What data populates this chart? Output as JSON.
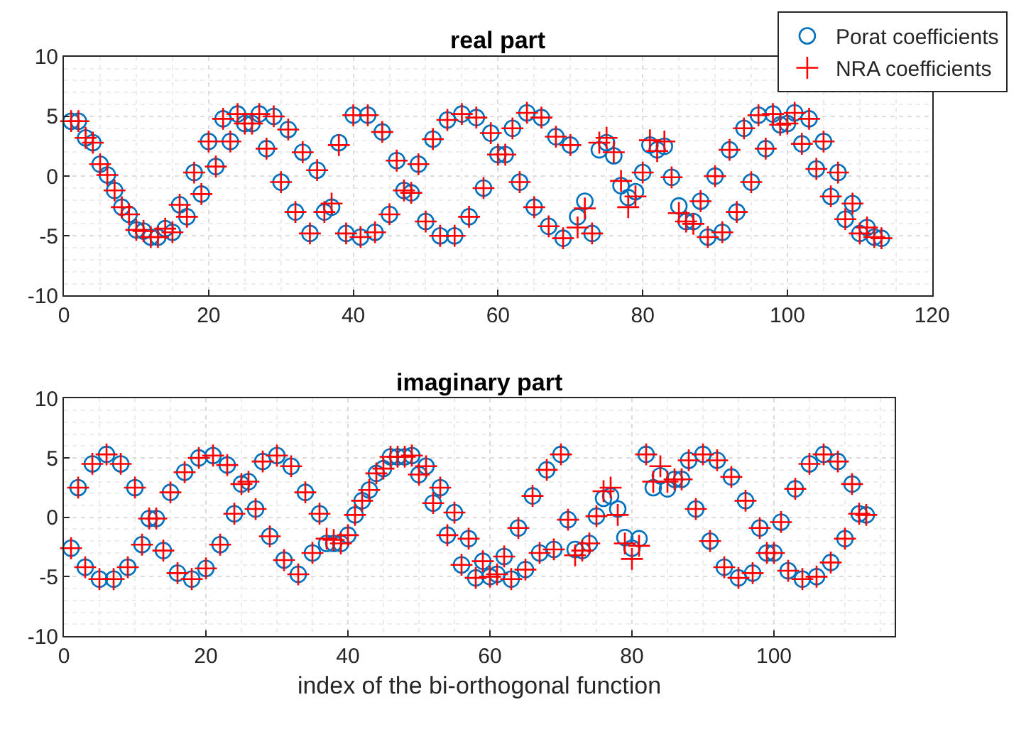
{
  "chart_data": [
    {
      "type": "scatter",
      "title": "real part",
      "xlim": [
        0,
        120
      ],
      "ylim": [
        -10,
        10
      ],
      "xticks": [
        0,
        20,
        40,
        60,
        80,
        100,
        120
      ],
      "yticks": [
        -10,
        -5,
        0,
        5,
        10
      ],
      "grid": true,
      "legend": "top right",
      "x": [
        1,
        2,
        3,
        4,
        5,
        6,
        7,
        8,
        9,
        10,
        11,
        12,
        13,
        14,
        15,
        16,
        17,
        18,
        19,
        20,
        21,
        22,
        23,
        24,
        25,
        26,
        27,
        28,
        29,
        30,
        31,
        32,
        33,
        34,
        35,
        36,
        37,
        38,
        39,
        40,
        41,
        42,
        43,
        44,
        45,
        46,
        47,
        48,
        49,
        50,
        51,
        52,
        53,
        54,
        55,
        56,
        57,
        58,
        59,
        60,
        61,
        62,
        63,
        64,
        65,
        66,
        67,
        68,
        69,
        70,
        71,
        72,
        73,
        74,
        75,
        76,
        77,
        78,
        79,
        80,
        81,
        82,
        83,
        84,
        85,
        86,
        87,
        88,
        89,
        90,
        91,
        92,
        93,
        94,
        95,
        96,
        97,
        98,
        99,
        100,
        101,
        102,
        103,
        104,
        105,
        106,
        107,
        108,
        109,
        110,
        111,
        112,
        113
      ],
      "series": [
        {
          "name": "Porat coefficients",
          "color": "#0072bd",
          "marker": "circle",
          "values": [
            4.6,
            4.6,
            3.2,
            2.8,
            1.0,
            0.1,
            -1.2,
            -2.6,
            -3.2,
            -4.5,
            -4.6,
            -5.1,
            -5.1,
            -4.4,
            -4.7,
            -2.4,
            -3.4,
            0.3,
            -1.5,
            2.9,
            0.8,
            4.8,
            2.9,
            5.2,
            4.4,
            4.4,
            5.2,
            2.3,
            5.0,
            -0.5,
            3.9,
            -3.0,
            2.0,
            -4.8,
            0.5,
            -3.0,
            -2.6,
            2.8,
            -4.8,
            5.1,
            -5.1,
            5.1,
            -4.7,
            3.7,
            -3.2,
            1.3,
            -1.2,
            -1.4,
            1.0,
            -3.8,
            3.1,
            -5.0,
            4.7,
            -5.0,
            5.2,
            -3.4,
            4.9,
            -1.0,
            3.6,
            1.8,
            1.8,
            4.0,
            -0.5,
            5.3,
            -2.6,
            4.9,
            -4.2,
            3.3,
            -5.2,
            2.6,
            -3.4,
            -2.1,
            -4.8,
            2.2,
            2.8,
            1.7,
            -0.8,
            -1.8,
            -1.3,
            0.3,
            2.6,
            2.2,
            2.5,
            -0.1,
            -2.5,
            -3.8,
            -3.8,
            -2.1,
            -5.1,
            0.0,
            -4.7,
            2.2,
            -3.0,
            4.0,
            -0.5,
            5.1,
            2.3,
            5.2,
            4.3,
            4.4,
            5.3,
            2.7,
            4.8,
            0.6,
            2.9,
            -1.7,
            0.3,
            -3.6,
            -2.3,
            -4.8,
            -4.3,
            -5.1,
            -5.2
          ]
        },
        {
          "name": "NRA coefficients",
          "color": "#ff0000",
          "marker": "cross",
          "values": [
            4.6,
            4.6,
            3.2,
            2.8,
            1.0,
            0.1,
            -1.2,
            -2.6,
            -3.2,
            -4.5,
            -4.6,
            -5.1,
            -5.1,
            -4.4,
            -4.7,
            -2.4,
            -3.4,
            0.3,
            -1.5,
            2.9,
            0.8,
            4.8,
            2.9,
            5.2,
            4.4,
            4.4,
            5.2,
            2.3,
            5.0,
            -0.5,
            3.9,
            -3.0,
            2.0,
            -4.8,
            0.5,
            -3.0,
            -2.3,
            2.6,
            -4.8,
            5.1,
            -5.1,
            5.1,
            -4.7,
            3.7,
            -3.2,
            1.3,
            -1.2,
            -1.4,
            1.0,
            -3.8,
            3.1,
            -5.0,
            4.7,
            -5.0,
            5.2,
            -3.4,
            4.9,
            -1.0,
            3.6,
            1.8,
            1.8,
            4.0,
            -0.5,
            5.3,
            -2.6,
            4.9,
            -4.2,
            3.3,
            -5.2,
            2.6,
            -4.3,
            -2.7,
            -4.8,
            2.8,
            3.2,
            2.0,
            -0.4,
            -2.6,
            -1.7,
            0.3,
            3.0,
            2.1,
            2.9,
            -0.1,
            -3.1,
            -3.8,
            -4.0,
            -2.1,
            -5.1,
            0.0,
            -4.7,
            2.2,
            -3.0,
            4.0,
            -0.5,
            5.1,
            2.3,
            5.2,
            4.3,
            4.4,
            5.3,
            2.7,
            4.8,
            0.6,
            2.9,
            -1.7,
            0.3,
            -3.6,
            -2.3,
            -4.8,
            -4.3,
            -5.1,
            -5.2
          ]
        }
      ]
    },
    {
      "type": "scatter",
      "title": "imaginary part",
      "xlabel": "index of the bi-orthogonal function",
      "xlim": [
        0,
        117
      ],
      "ylim": [
        -10,
        10
      ],
      "xticks": [
        0,
        20,
        40,
        60,
        80,
        100
      ],
      "yticks": [
        -10,
        -5,
        0,
        5,
        10
      ],
      "grid": true,
      "x": [
        1,
        2,
        3,
        4,
        5,
        6,
        7,
        8,
        9,
        10,
        11,
        12,
        13,
        14,
        15,
        16,
        17,
        18,
        19,
        20,
        21,
        22,
        23,
        24,
        25,
        26,
        27,
        28,
        29,
        30,
        31,
        32,
        33,
        34,
        35,
        36,
        37,
        38,
        39,
        40,
        41,
        42,
        43,
        44,
        45,
        46,
        47,
        48,
        49,
        50,
        51,
        52,
        53,
        54,
        55,
        56,
        57,
        58,
        59,
        60,
        61,
        62,
        63,
        64,
        65,
        66,
        67,
        68,
        69,
        70,
        71,
        72,
        73,
        74,
        75,
        76,
        77,
        78,
        79,
        80,
        81,
        82,
        83,
        84,
        85,
        86,
        87,
        88,
        89,
        90,
        91,
        92,
        93,
        94,
        95,
        96,
        97,
        98,
        99,
        100,
        101,
        102,
        103,
        104,
        105,
        106,
        107,
        108,
        109,
        110,
        111,
        112,
        113
      ],
      "series": [
        {
          "color": "#0072bd",
          "marker": "circle",
          "values": [
            -2.6,
            2.5,
            -4.2,
            4.5,
            -5.2,
            5.3,
            -5.2,
            4.5,
            -4.2,
            2.5,
            -2.3,
            -0.1,
            -0.1,
            -2.8,
            2.1,
            -4.7,
            3.8,
            -5.2,
            5.0,
            -4.3,
            5.2,
            -2.3,
            4.4,
            0.3,
            2.8,
            3.0,
            0.7,
            4.7,
            -1.6,
            5.2,
            -3.6,
            4.3,
            -4.8,
            2.1,
            -3.0,
            0.3,
            -2.2,
            -2.2,
            -2.2,
            -1.5,
            0.2,
            1.4,
            2.3,
            3.7,
            4.1,
            5.1,
            5.1,
            5.1,
            5.2,
            3.6,
            4.3,
            1.2,
            2.5,
            -1.5,
            0.4,
            -4.0,
            -1.8,
            -5.1,
            -3.7,
            -5.0,
            -4.8,
            -3.3,
            -5.2,
            -0.9,
            -4.4,
            1.8,
            -3.0,
            4.0,
            -2.7,
            5.3,
            -0.2,
            -2.7,
            -2.8,
            -2.2,
            0.1,
            1.6,
            1.8,
            0.7,
            -1.7,
            -2.6,
            -1.8,
            5.3,
            2.5,
            3.5,
            2.4,
            3.2,
            3.2,
            4.8,
            0.7,
            5.3,
            -2.0,
            4.8,
            -4.2,
            3.4,
            -5.1,
            1.4,
            -4.7,
            -0.9,
            -3.0,
            -3.0,
            -0.4,
            -4.5,
            2.4,
            -5.2,
            4.5,
            -5.0,
            5.3,
            -3.8,
            4.7,
            -1.8,
            2.8,
            0.3,
            0.2
          ]
        },
        {
          "color": "#ff0000",
          "marker": "cross",
          "values": [
            -2.6,
            2.5,
            -4.2,
            4.5,
            -5.2,
            5.3,
            -5.2,
            4.5,
            -4.2,
            2.5,
            -2.3,
            -0.1,
            -0.1,
            -2.8,
            2.1,
            -4.7,
            3.8,
            -5.2,
            5.0,
            -4.3,
            5.2,
            -2.3,
            4.4,
            0.3,
            2.8,
            3.0,
            0.7,
            4.7,
            -1.6,
            5.2,
            -3.6,
            4.3,
            -4.8,
            2.1,
            -3.0,
            0.3,
            -1.8,
            -1.9,
            -2.2,
            -1.5,
            0.2,
            1.4,
            2.3,
            3.7,
            4.1,
            5.1,
            5.1,
            5.1,
            5.2,
            3.6,
            4.3,
            1.2,
            2.5,
            -1.5,
            0.4,
            -4.0,
            -1.8,
            -5.1,
            -3.7,
            -5.0,
            -4.8,
            -3.3,
            -5.2,
            -0.9,
            -4.4,
            1.8,
            -3.0,
            4.0,
            -2.7,
            5.3,
            -0.2,
            -3.2,
            -2.8,
            -2.2,
            0.1,
            2.2,
            2.5,
            0.2,
            -2.2,
            -3.5,
            -2.4,
            5.3,
            3.0,
            4.3,
            3.0,
            3.2,
            3.2,
            4.8,
            0.7,
            5.3,
            -2.0,
            4.8,
            -4.2,
            3.4,
            -5.1,
            1.4,
            -4.7,
            -0.9,
            -3.0,
            -3.0,
            -0.4,
            -4.5,
            2.4,
            -5.2,
            4.5,
            -5.0,
            5.3,
            -3.8,
            4.7,
            -1.8,
            2.8,
            0.3,
            0.2
          ]
        }
      ]
    }
  ]
}
